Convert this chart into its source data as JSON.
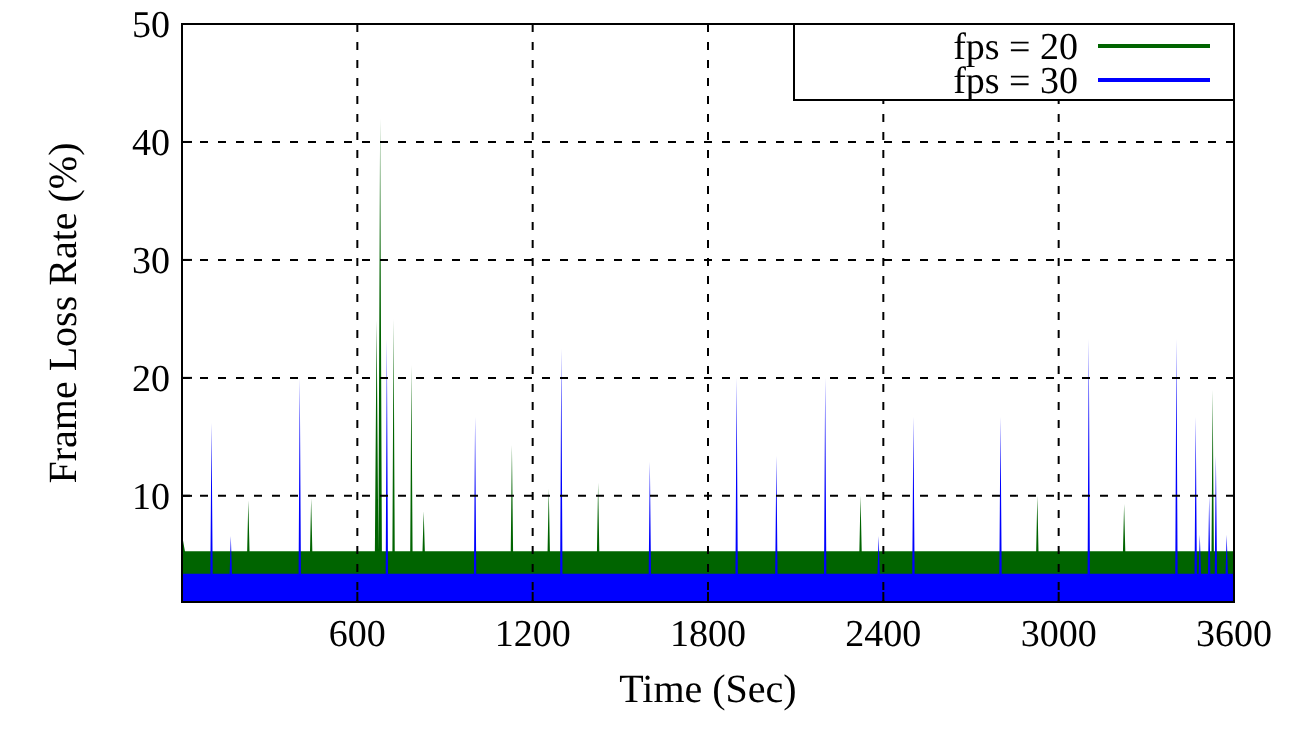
{
  "chart_data": {
    "type": "area",
    "xlabel": "Time (Sec)",
    "ylabel": "Frame Loss Rate (%)",
    "xlim": [
      0,
      3600
    ],
    "xticks": [
      600,
      1200,
      1800,
      2400,
      3000,
      3600
    ],
    "ylim": [
      1,
      50
    ],
    "yticks": [
      10,
      20,
      30,
      40,
      50
    ],
    "grid": true,
    "legend": "top right",
    "series": [
      {
        "name": "fps = 20",
        "color": "#006400",
        "x": [
          0,
          10,
          223,
          227,
          231,
          438,
          442,
          446,
          660,
          666,
          672,
          678,
          684,
          720,
          724,
          728,
          781,
          785,
          789,
          823,
          827,
          831,
          1125,
          1129,
          1133,
          1251,
          1255,
          1259,
          1420,
          1424,
          1428,
          2318,
          2322,
          2326,
          2923,
          2927,
          2931,
          3220,
          3224,
          3228,
          3523,
          3527,
          3531,
          3600
        ],
        "values": [
          6.7,
          5.3,
          5.3,
          9.6,
          5.3,
          5.3,
          9.8,
          5.3,
          5.3,
          24.9,
          5.3,
          42.0,
          5.3,
          5.3,
          25.0,
          5.3,
          5.3,
          21.1,
          5.3,
          5.3,
          8.7,
          5.3,
          5.3,
          14.3,
          5.3,
          5.3,
          10.6,
          5.3,
          5.3,
          11.1,
          5.3,
          5.3,
          10.0,
          5.3,
          5.3,
          10.0,
          5.3,
          5.3,
          9.3,
          5.3,
          5.3,
          19.0,
          5.3,
          5.3
        ]
      },
      {
        "name": "fps = 30",
        "color": "#0000ff",
        "x": [
          0,
          97,
          101,
          105,
          163,
          167,
          171,
          399,
          403,
          407,
          697,
          701,
          705,
          999,
          1003,
          1007,
          1294,
          1298,
          1302,
          1597,
          1601,
          1605,
          1894,
          1898,
          1902,
          2030,
          2034,
          2038,
          2197,
          2201,
          2205,
          2380,
          2384,
          2388,
          2499,
          2503,
          2507,
          2797,
          2801,
          2805,
          3099,
          3103,
          3107,
          3399,
          3403,
          3407,
          3465,
          3469,
          3473,
          3479,
          3483,
          3487,
          3511,
          3515,
          3519,
          3534,
          3538,
          3542,
          3571,
          3575,
          3579,
          3600
        ],
        "values": [
          3.4,
          3.4,
          16.2,
          3.4,
          3.4,
          6.6,
          3.4,
          3.4,
          20.0,
          3.4,
          3.4,
          23.3,
          3.4,
          3.4,
          16.7,
          3.4,
          3.4,
          22.5,
          3.4,
          3.4,
          12.9,
          3.4,
          3.4,
          20.0,
          3.4,
          3.4,
          13.4,
          3.4,
          3.4,
          20.0,
          3.4,
          3.4,
          6.6,
          3.4,
          3.4,
          16.7,
          3.4,
          3.4,
          16.7,
          3.4,
          3.4,
          23.3,
          3.4,
          3.4,
          23.3,
          3.4,
          3.4,
          16.7,
          3.4,
          3.4,
          6.7,
          3.4,
          3.4,
          10.0,
          3.4,
          3.4,
          13.4,
          3.4,
          3.4,
          6.7,
          3.4,
          3.4
        ]
      }
    ]
  }
}
